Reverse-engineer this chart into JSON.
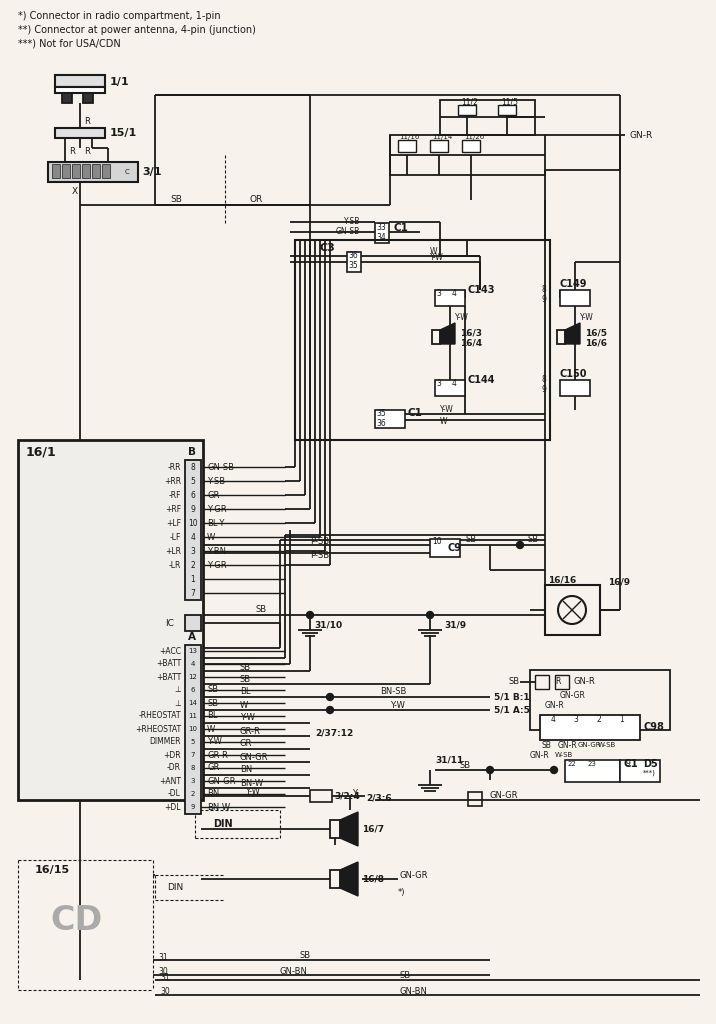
{
  "bg_color": "#f7f3ec",
  "line_color": "#1a1a1a",
  "header_notes": [
    "*) Connector in radio compartment, 1-pin",
    "**) Connector at power antenna, 4-pin (junction)",
    "***) Not for USA/CDN"
  ],
  "b_pins": [
    [
      "-RR",
      "8",
      "GN-SB"
    ],
    [
      "+RR",
      "5",
      "Y-SB"
    ],
    [
      "-RF",
      "6",
      "GR"
    ],
    [
      "+RF",
      "9",
      "Y-GR"
    ],
    [
      "+LF",
      "10",
      "BL-Y"
    ],
    [
      "-LF",
      "4",
      "W"
    ],
    [
      "+LR",
      "3",
      "Y-BN"
    ],
    [
      "-LR",
      "2",
      "Y-GR"
    ],
    [
      "",
      "1",
      ""
    ],
    [
      "",
      "7",
      ""
    ]
  ],
  "a_pins": [
    [
      "+ACC",
      "13",
      ""
    ],
    [
      "+BATT",
      "4",
      ""
    ],
    [
      "+BATT",
      "12",
      ""
    ],
    [
      "⊥",
      "6",
      "SB"
    ],
    [
      "⊥",
      "14",
      "SB"
    ],
    [
      "-RHEOSTAT",
      "11",
      "BL"
    ],
    [
      "+RHEOSTAT",
      "10",
      "W"
    ],
    [
      "DIMMER",
      "5",
      "Y-W"
    ],
    [
      "+DR",
      "7",
      "GR-R"
    ],
    [
      "-DR",
      "8",
      "GR"
    ],
    [
      "+ANT",
      "3",
      "GN-GR"
    ],
    [
      "-DL",
      "2",
      "BN"
    ],
    [
      "+DL",
      "9",
      "BN-W"
    ]
  ]
}
